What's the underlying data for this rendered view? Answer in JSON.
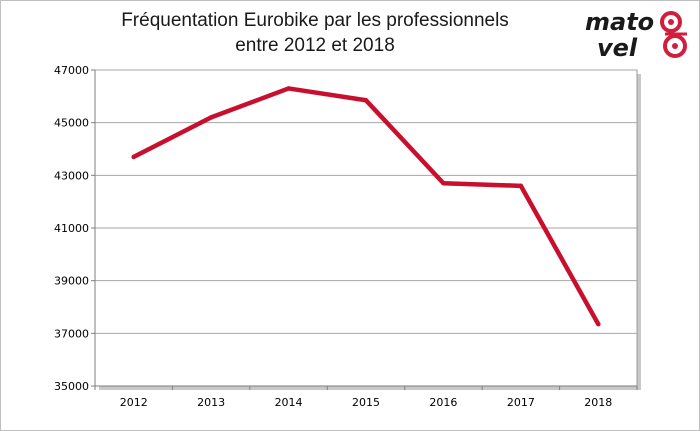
{
  "title_line1": "Fréquentation Eurobike par les professionnels",
  "title_line2": "entre 2012 et 2018",
  "logo": {
    "line1": "mato",
    "line2": "vel",
    "icon": "bike-gear-logo",
    "color_dark": "#1a1a1a",
    "color_accent": "#d01e3c"
  },
  "chart_data": {
    "type": "line",
    "title": "Fréquentation Eurobike par les professionnels entre 2012 et 2018",
    "xlabel": "",
    "ylabel": "",
    "categories": [
      "2012",
      "2013",
      "2014",
      "2015",
      "2016",
      "2017",
      "2018"
    ],
    "series": [
      {
        "values": [
          43700,
          45200,
          46300,
          45850,
          42700,
          42600,
          37350
        ],
        "color": "#c8102e"
      }
    ],
    "ylim": [
      35000,
      47000
    ],
    "yticks": [
      35000,
      37000,
      39000,
      41000,
      43000,
      45000,
      47000
    ],
    "ytick_labels": [
      "35000",
      "37000",
      "39000",
      "41000",
      "43000",
      "45000",
      "47000"
    ],
    "grid": true,
    "legend": "none"
  }
}
